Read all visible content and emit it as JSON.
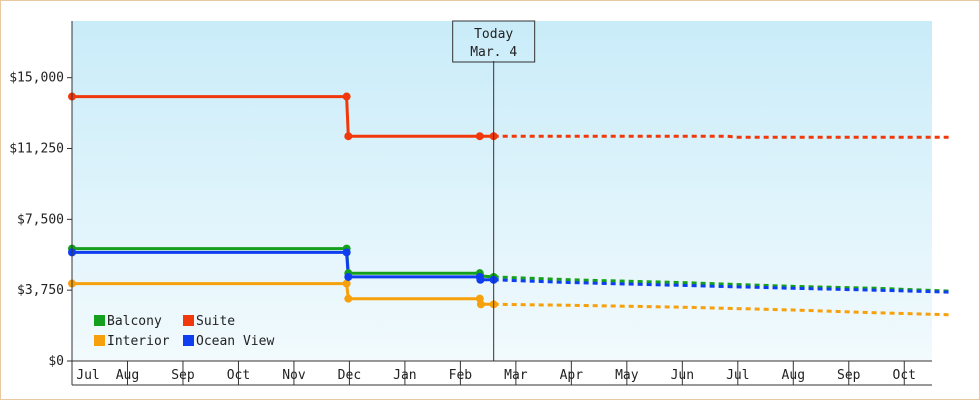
{
  "chart_data": {
    "type": "line",
    "title": "",
    "xlabel": "",
    "ylabel": "",
    "ylim": [
      0,
      18000
    ],
    "y_ticks": [
      {
        "value": 0,
        "label": "$0"
      },
      {
        "value": 3750,
        "label": "$3,750"
      },
      {
        "value": 7500,
        "label": "$7,500"
      },
      {
        "value": 11250,
        "label": "$11,250"
      },
      {
        "value": 15000,
        "label": "$15,000"
      }
    ],
    "x_months": [
      "Jul",
      "Aug",
      "Sep",
      "Oct",
      "Nov",
      "Dec",
      "Jan",
      "Feb",
      "Mar",
      "Apr",
      "May",
      "Jun",
      "Jul",
      "Aug",
      "Sep",
      "Oct"
    ],
    "today": {
      "line1": "Today",
      "line2": "Mar. 4",
      "month_position": 7.6
    },
    "grid": false,
    "background": {
      "top": "#c9ecf9",
      "bottom": "#f2fafd"
    },
    "legend_position": "bottom-left",
    "series": [
      {
        "name": "Balcony",
        "color": "#14a01c",
        "actual": [
          [
            0,
            5950
          ],
          [
            4.95,
            5950
          ],
          [
            4.98,
            4650
          ],
          [
            7.35,
            4650
          ],
          [
            7.36,
            4500
          ],
          [
            7.6,
            4450
          ]
        ],
        "forecast": [
          [
            7.6,
            4450
          ],
          [
            9.0,
            4300
          ],
          [
            11.0,
            4150
          ],
          [
            13.0,
            3950
          ],
          [
            14.5,
            3850
          ],
          [
            15.8,
            3700
          ]
        ]
      },
      {
        "name": "Suite",
        "color": "#f0380a",
        "actual": [
          [
            0,
            14000
          ],
          [
            4.95,
            14000
          ],
          [
            4.98,
            11900
          ],
          [
            7.35,
            11900
          ],
          [
            7.6,
            11900
          ]
        ],
        "forecast": [
          [
            7.6,
            11900
          ],
          [
            11.8,
            11900
          ],
          [
            12.0,
            11850
          ],
          [
            15.8,
            11850
          ]
        ]
      },
      {
        "name": "Interior",
        "color": "#f6a10c",
        "actual": [
          [
            0,
            4100
          ],
          [
            4.95,
            4100
          ],
          [
            4.98,
            3300
          ],
          [
            7.35,
            3300
          ],
          [
            7.37,
            3000
          ],
          [
            7.6,
            3000
          ]
        ],
        "forecast": [
          [
            7.6,
            3000
          ],
          [
            9.0,
            2950
          ],
          [
            11.0,
            2850
          ],
          [
            13.0,
            2700
          ],
          [
            14.5,
            2550
          ],
          [
            15.8,
            2450
          ]
        ]
      },
      {
        "name": "Ocean View",
        "color": "#0e3ef0",
        "actual": [
          [
            0,
            5750
          ],
          [
            4.95,
            5750
          ],
          [
            4.98,
            4450
          ],
          [
            7.35,
            4450
          ],
          [
            7.36,
            4300
          ],
          [
            7.6,
            4300
          ]
        ],
        "forecast": [
          [
            7.6,
            4300
          ],
          [
            9.0,
            4150
          ],
          [
            11.0,
            4000
          ],
          [
            13.0,
            3850
          ],
          [
            14.5,
            3750
          ],
          [
            15.8,
            3650
          ]
        ]
      }
    ],
    "markers": [
      {
        "series": 0,
        "points": [
          [
            0,
            5950
          ],
          [
            4.95,
            5950
          ],
          [
            4.98,
            4650
          ],
          [
            7.35,
            4650
          ],
          [
            7.36,
            4500
          ],
          [
            7.6,
            4450
          ]
        ]
      },
      {
        "series": 1,
        "points": [
          [
            0,
            14000
          ],
          [
            4.95,
            14000
          ],
          [
            4.98,
            11900
          ],
          [
            7.35,
            11900
          ],
          [
            7.6,
            11900
          ]
        ]
      },
      {
        "series": 2,
        "points": [
          [
            0,
            4100
          ],
          [
            4.95,
            4100
          ],
          [
            4.98,
            3300
          ],
          [
            7.35,
            3300
          ],
          [
            7.37,
            3000
          ],
          [
            7.6,
            3000
          ]
        ]
      },
      {
        "series": 3,
        "points": [
          [
            0,
            5750
          ],
          [
            4.95,
            5750
          ],
          [
            4.98,
            4450
          ],
          [
            7.35,
            4450
          ],
          [
            7.36,
            4300
          ],
          [
            7.6,
            4300
          ]
        ]
      }
    ]
  }
}
